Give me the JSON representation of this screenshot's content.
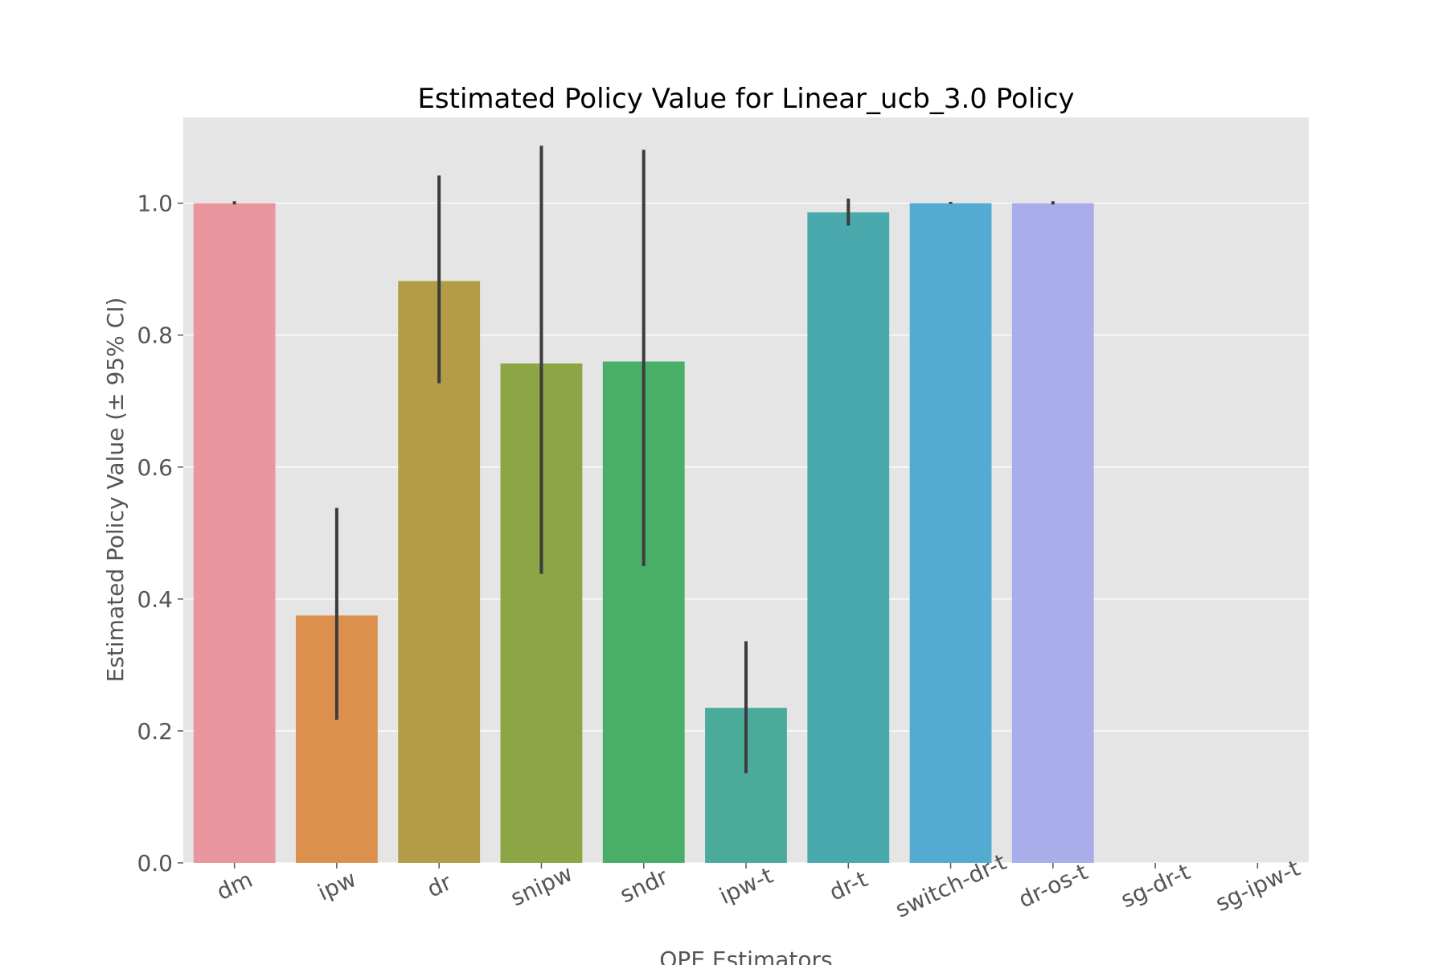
{
  "chart_data": {
    "type": "bar",
    "title": "Estimated Policy Value for Linear_ucb_3.0 Policy",
    "xlabel": "OPE Estimators",
    "ylabel": "Estimated Policy Value (± 95% CI)",
    "ylim": [
      0,
      1.13
    ],
    "yticks": [
      "0.0",
      "0.2",
      "0.4",
      "0.6",
      "0.8",
      "1.0"
    ],
    "ytick_values": [
      0,
      0.2,
      0.4,
      0.6,
      0.8,
      1.0
    ],
    "grid": true,
    "categories": [
      "dm",
      "ipw",
      "dr",
      "snipw",
      "sndr",
      "ipw-t",
      "dr-t",
      "switch-dr-t",
      "dr-os-t",
      "sg-dr-t",
      "sg-ipw-t"
    ],
    "values": [
      1.0,
      0.375,
      0.882,
      0.757,
      0.76,
      0.235,
      0.986,
      1.0,
      1.0,
      0.0,
      0.0
    ],
    "ci_low": [
      0.998,
      0.217,
      0.727,
      0.438,
      0.45,
      0.136,
      0.966,
      0.999,
      0.998,
      0.0,
      0.0
    ],
    "ci_high": [
      1.003,
      0.538,
      1.042,
      1.087,
      1.081,
      0.336,
      1.007,
      1.002,
      1.003,
      0.0,
      0.0
    ],
    "colors": [
      "#e9969f",
      "#dc904d",
      "#b29c48",
      "#8da544",
      "#49ae68",
      "#4aab9b",
      "#4aa9ad",
      "#53abd2",
      "#a9aeeb",
      "#cccccc",
      "#cccccc"
    ],
    "background": "#e5e5e5",
    "errorbar_color": "#3c3c3c"
  }
}
